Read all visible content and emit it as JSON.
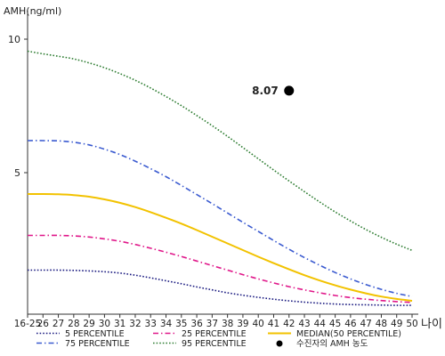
{
  "chart_data": {
    "type": "line",
    "ylabel": "AMH(ng/ml)",
    "xlabel": "나이",
    "x_ticks": [
      "16-25",
      "26",
      "27",
      "28",
      "29",
      "30",
      "31",
      "32",
      "33",
      "34",
      "35",
      "36",
      "37",
      "38",
      "39",
      "40",
      "41",
      "42",
      "43",
      "44",
      "45",
      "46",
      "47",
      "48",
      "49",
      "50"
    ],
    "y_ticks": [
      5,
      10
    ],
    "ylim": [
      -0.3,
      10.8
    ],
    "grid": false,
    "legend_position": "bottom",
    "series": [
      {
        "name": "5 PERCENTILE",
        "color": "#1a1a80",
        "style": "dotted",
        "values": [
          1.35,
          1.35,
          1.35,
          1.34,
          1.32,
          1.29,
          1.24,
          1.16,
          1.06,
          0.95,
          0.84,
          0.72,
          0.61,
          0.5,
          0.41,
          0.33,
          0.26,
          0.2,
          0.15,
          0.11,
          0.08,
          0.06,
          0.05,
          0.04,
          0.03,
          0.03
        ]
      },
      {
        "name": "25 PERCENTILE",
        "color": "#e0188a",
        "style": "dash-dot",
        "values": [
          2.65,
          2.65,
          2.65,
          2.63,
          2.59,
          2.52,
          2.43,
          2.31,
          2.17,
          2.02,
          1.86,
          1.69,
          1.52,
          1.35,
          1.18,
          1.02,
          0.87,
          0.73,
          0.61,
          0.5,
          0.4,
          0.32,
          0.26,
          0.21,
          0.17,
          0.14
        ]
      },
      {
        "name": "MEDIAN(50 PERCENTILE)",
        "color": "#f2c200",
        "style": "solid",
        "values": [
          4.2,
          4.2,
          4.19,
          4.16,
          4.1,
          4.0,
          3.87,
          3.71,
          3.52,
          3.31,
          3.09,
          2.85,
          2.6,
          2.35,
          2.1,
          1.85,
          1.61,
          1.38,
          1.16,
          0.96,
          0.78,
          0.62,
          0.48,
          0.36,
          0.27,
          0.2
        ]
      },
      {
        "name": "75 PERCENTILE",
        "color": "#3b5bd0",
        "style": "dash-dot",
        "values": [
          6.2,
          6.2,
          6.19,
          6.14,
          6.04,
          5.88,
          5.68,
          5.43,
          5.15,
          4.85,
          4.52,
          4.18,
          3.84,
          3.49,
          3.14,
          2.8,
          2.46,
          2.13,
          1.82,
          1.53,
          1.26,
          1.02,
          0.81,
          0.63,
          0.48,
          0.36
        ]
      },
      {
        "name": "95 PERCENTILE",
        "color": "#2e7d32",
        "style": "dotted",
        "values": [
          9.55,
          9.45,
          9.36,
          9.26,
          9.11,
          8.93,
          8.71,
          8.46,
          8.17,
          7.85,
          7.51,
          7.14,
          6.76,
          6.36,
          5.94,
          5.52,
          5.1,
          4.69,
          4.29,
          3.9,
          3.53,
          3.19,
          2.87,
          2.58,
          2.32,
          2.09
        ]
      }
    ],
    "highlight_point": {
      "name": "수진자의 AMH 농도",
      "x": "42",
      "y": 8.07,
      "label": "8.07",
      "color": "#000000"
    }
  }
}
